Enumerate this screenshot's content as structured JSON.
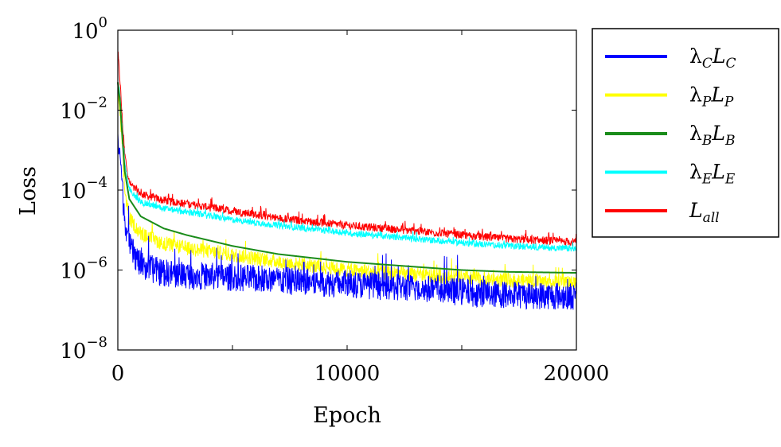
{
  "chart_data": {
    "type": "line",
    "xlabel": "Epoch",
    "ylabel": "Loss",
    "x_ticks": [
      0,
      10000,
      20000
    ],
    "x_tick_labels": [
      "0",
      "10000",
      "20000"
    ],
    "y_ticks": [
      1e-08,
      1e-06,
      0.0001,
      0.01,
      1
    ],
    "y_tick_labels": [
      {
        "base": "10",
        "exp": "−8"
      },
      {
        "base": "10",
        "exp": "−6"
      },
      {
        "base": "10",
        "exp": "−4"
      },
      {
        "base": "10",
        "exp": "−2"
      },
      {
        "base": "10",
        "exp": "0"
      }
    ],
    "xlim": [
      0,
      20000
    ],
    "ylim": [
      1e-08,
      1
    ],
    "y_scale": "log",
    "grid": false,
    "legend_position": "outside-right",
    "series": [
      {
        "name": "λCLC",
        "symbol": "λ",
        "sub": "C",
        "L": "L",
        "lsub": "C",
        "color": "#0000ff",
        "x": [
          0,
          100,
          200,
          300,
          500,
          1000,
          2000,
          3000,
          5000,
          7000,
          10000,
          13000,
          15000,
          17000,
          20000
        ],
        "y": [
          0.003,
          0.0008,
          0.0001,
          2e-05,
          4e-06,
          1.3e-06,
          8.5e-07,
          7.5e-07,
          6.5e-07,
          5.5e-07,
          4.5e-07,
          3.5e-07,
          2.8e-07,
          2.4e-07,
          2.2e-07
        ],
        "noise": 0.35
      },
      {
        "name": "λPLP",
        "symbol": "λ",
        "sub": "P",
        "L": "L",
        "lsub": "P",
        "color": "#ffff00",
        "x": [
          0,
          100,
          200,
          300,
          500,
          1000,
          2000,
          3000,
          5000,
          7000,
          10000,
          13000,
          15000,
          17000,
          20000
        ],
        "y": [
          0.02,
          0.008,
          0.001,
          0.0001,
          2e-05,
          8e-06,
          4.5e-06,
          3.5e-06,
          2.4e-06,
          1.6e-06,
          1e-06,
          7.5e-07,
          6.5e-07,
          5.5e-07,
          4.8e-07
        ],
        "noise": 0.18
      },
      {
        "name": "λBLB",
        "symbol": "λ",
        "sub": "B",
        "L": "L",
        "lsub": "B",
        "color": "#1a8c1a",
        "x": [
          0,
          100,
          200,
          300,
          500,
          1000,
          2000,
          3000,
          5000,
          7000,
          10000,
          13000,
          15000,
          17000,
          20000
        ],
        "y": [
          0.05,
          0.015,
          0.002,
          0.0003,
          6e-05,
          2.2e-05,
          1.1e-05,
          7.5e-06,
          4e-06,
          2.5e-06,
          1.6e-06,
          1.2e-06,
          1e-06,
          9e-07,
          8.5e-07
        ],
        "noise": 0.0
      },
      {
        "name": "λELE",
        "symbol": "λ",
        "sub": "E",
        "L": "L",
        "lsub": "E",
        "color": "#00ffff",
        "x": [
          0,
          100,
          200,
          300,
          500,
          1000,
          2000,
          3000,
          5000,
          7000,
          10000,
          13000,
          15000,
          17000,
          20000
        ],
        "y": [
          0.05,
          0.02,
          0.003,
          0.0005,
          0.0001,
          5e-05,
          3.5e-05,
          2.8e-05,
          1.8e-05,
          1.3e-05,
          8.5e-06,
          6e-06,
          4.8e-06,
          4e-06,
          3.4e-06
        ],
        "noise": 0.08
      },
      {
        "name": "Lall",
        "symbol": "",
        "sub": "",
        "L": "L",
        "lsub": "all",
        "color": "#ff0000",
        "x": [
          0,
          100,
          200,
          300,
          500,
          1000,
          2000,
          3000,
          5000,
          7000,
          10000,
          13000,
          15000,
          17000,
          20000
        ],
        "y": [
          0.3,
          0.05,
          0.005,
          0.0008,
          0.00015,
          8e-05,
          5.5e-05,
          4.5e-05,
          3e-05,
          2e-05,
          1.3e-05,
          9.5e-06,
          7.5e-06,
          6e-06,
          5e-06
        ],
        "noise": 0.1
      }
    ]
  }
}
